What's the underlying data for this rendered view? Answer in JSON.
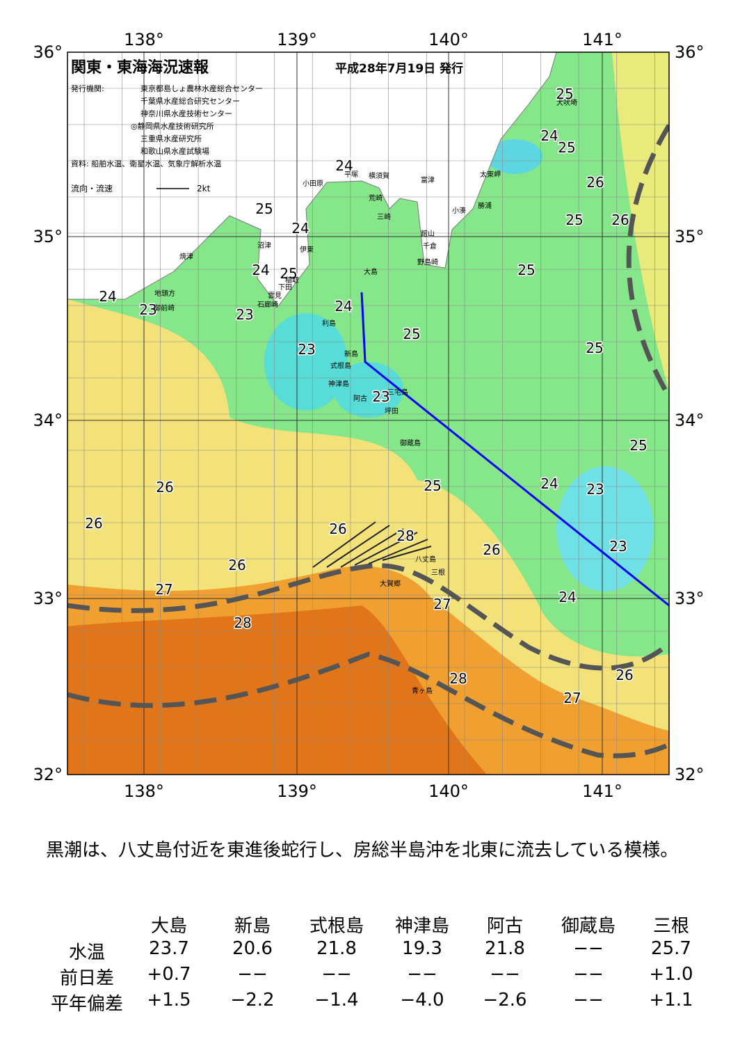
{
  "map": {
    "title": "関東・東海海況速報",
    "date": "平成28年7月19日 発行",
    "publisher_label": "発行機関:",
    "publishers": [
      "東京都島しょ農林水産総合センター",
      "千葉県水産総合研究センター",
      "神奈川県水産技術センター",
      "◎静岡県水産技術研究所",
      "三重県水産研究所",
      "和歌山県水産試験場"
    ],
    "source": "資料: 船舶水温、衛星水温、気象庁解析水温",
    "legend_label": "流向・流速",
    "legend_scale": "2kt",
    "lon_labels": [
      "138°",
      "139°",
      "140°",
      "141°"
    ],
    "lat_labels": [
      "36°",
      "35°",
      "34°",
      "33°",
      "32°"
    ],
    "contour_labels": [
      "25",
      "24",
      "25",
      "26",
      "25",
      "26",
      "24",
      "25",
      "24",
      "24",
      "25",
      "24",
      "23",
      "23",
      "24",
      "25",
      "25",
      "25",
      "23",
      "23",
      "25",
      "26",
      "24",
      "25",
      "23",
      "26",
      "26",
      "28",
      "26",
      "23",
      "26",
      "27",
      "27",
      "24",
      "28",
      "26",
      "28",
      "27"
    ],
    "place_labels": [
      "犬吠埼",
      "太東岬",
      "勝浦",
      "小湊",
      "富津",
      "横須賀",
      "平塚",
      "小田原",
      "館山",
      "千倉",
      "野島崎",
      "三崎",
      "荒崎",
      "沼津",
      "伊東",
      "焼津",
      "稲取",
      "下田",
      "雲見",
      "石廊崎",
      "地頭方",
      "御前崎",
      "大島",
      "利島",
      "新島",
      "式根島",
      "神津島",
      "三宅島",
      "阿古",
      "坪田",
      "御蔵島",
      "八丈島",
      "三根",
      "大賀郷",
      "青ヶ島"
    ]
  },
  "summary": "黒潮は、八丈島付近を東進後蛇行し、房総半島沖を北東に流去している模様。",
  "table": {
    "columns": [
      "大島",
      "新島",
      "式根島",
      "神津島",
      "阿古",
      "御蔵島",
      "三根"
    ],
    "rows": [
      {
        "label": "水温",
        "cells": [
          "23.7",
          "20.6",
          "21.8",
          "19.3",
          "21.8",
          "−−",
          "25.7"
        ]
      },
      {
        "label": "前日差",
        "cells": [
          "+0.7",
          "−−",
          "−−",
          "−−",
          "−−",
          "−−",
          "+1.0"
        ]
      },
      {
        "label": "平年偏差",
        "cells": [
          "+1.5",
          "−2.2",
          "−1.4",
          "−4.0",
          "−2.6",
          "−−",
          "+1.1"
        ]
      }
    ]
  }
}
